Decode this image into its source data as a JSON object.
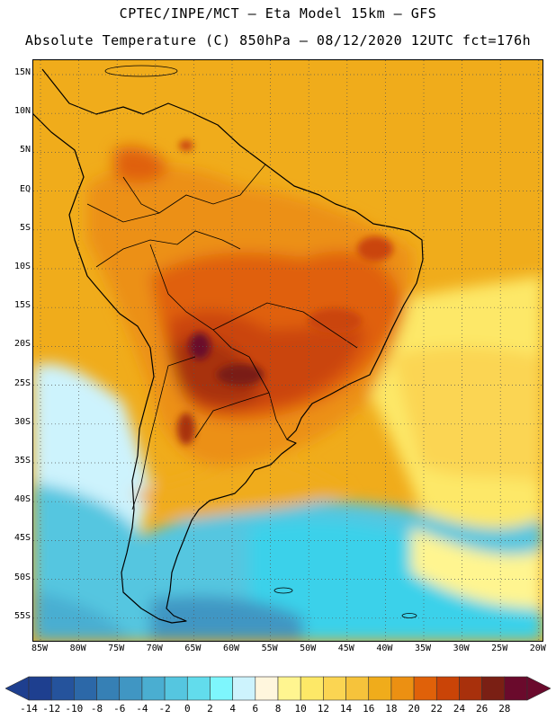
{
  "title": {
    "line1": "CPTEC/INPE/MCT –  Eta Model 15km – GFS",
    "line2": "Absolute Temperature (C) 850hPa – 08/12/2020 12UTC fct=176h"
  },
  "map": {
    "region": "South America",
    "lat_labels": [
      "15N",
      "10N",
      "5N",
      "EQ",
      "5S",
      "10S",
      "15S",
      "20S",
      "25S",
      "30S",
      "35S",
      "40S",
      "45S",
      "50S",
      "55S"
    ],
    "lon_labels": [
      "85W",
      "80W",
      "75W",
      "70W",
      "65W",
      "60W",
      "55W",
      "50W",
      "45W",
      "40W",
      "35W",
      "30W",
      "25W",
      "20W"
    ]
  },
  "colorbar": {
    "labels": [
      "-14",
      "-12",
      "-10",
      "-8",
      "-6",
      "-4",
      "-2",
      "0",
      "2",
      "4",
      "6",
      "8",
      "10",
      "12",
      "14",
      "16",
      "18",
      "20",
      "22",
      "24",
      "26",
      "28"
    ],
    "colors": [
      "#1e3f8f",
      "#25539c",
      "#2c68a8",
      "#3680b5",
      "#4096c3",
      "#4aaed1",
      "#55c6e0",
      "#62dcec",
      "#7ef6fd",
      "#cdf3fd",
      "#fff6dd",
      "#fff590",
      "#fde867",
      "#fbd552",
      "#f6c33b",
      "#f0ac1b",
      "#ec9012",
      "#e06109",
      "#ca4407",
      "#a8300c",
      "#7a1f14",
      "#6a0a2c"
    ]
  },
  "colors": {
    "ocean_cold": "#3ad1ea",
    "ocean_warm": "#f0ac1b",
    "land_hot": "#a8300c",
    "coast": "#000000"
  }
}
